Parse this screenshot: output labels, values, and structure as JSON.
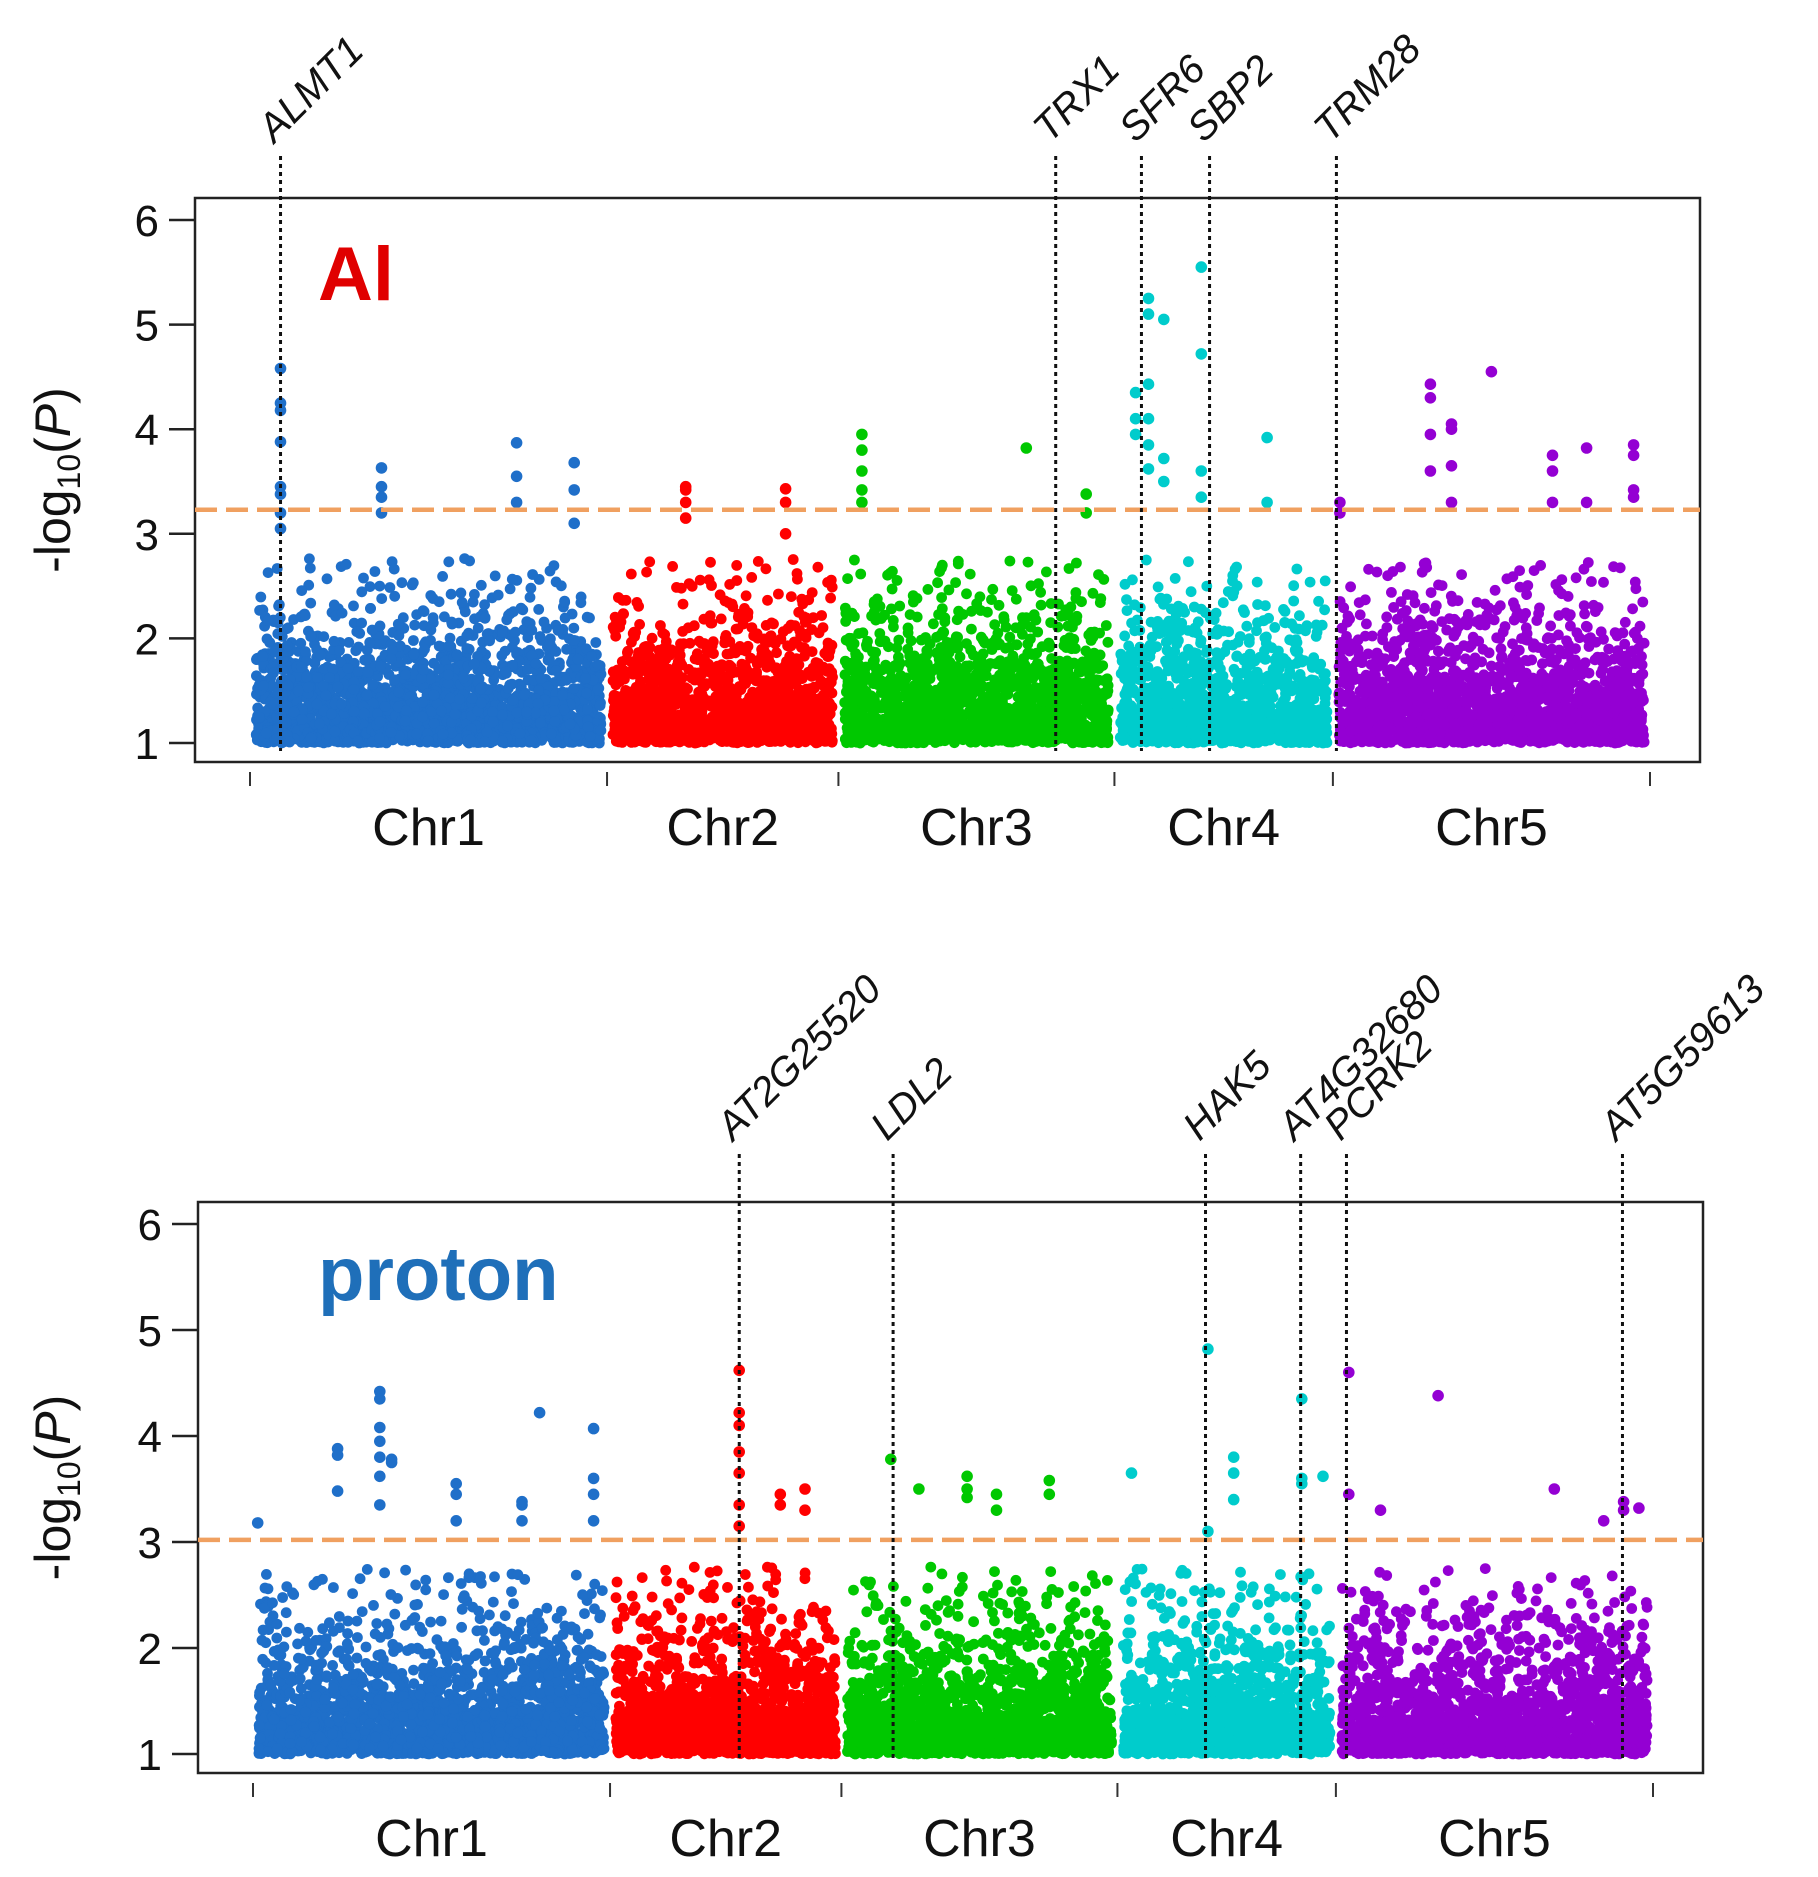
{
  "chart_data": [
    {
      "type": "scatter",
      "subtype": "manhattan",
      "title": "Al",
      "title_color": "#e00000",
      "ylabel": "-log10(P)",
      "ylabel_parts": {
        "prefix": "-log",
        "sub": "10",
        "suffix": "(",
        "italic": "P",
        "close": ")"
      },
      "ylim": [
        1,
        6.2
      ],
      "yticks": [
        "1",
        "2",
        "3",
        "4",
        "5",
        "6"
      ],
      "threshold": 3.23,
      "threshold_color": "#f0a060",
      "chromosomes": [
        {
          "name": "Chr1",
          "color": "#1f6fc9",
          "start": 0,
          "end": 30.4
        },
        {
          "name": "Chr2",
          "color": "#ff0000",
          "start": 30.4,
          "end": 50.1
        },
        {
          "name": "Chr3",
          "color": "#00c800",
          "start": 50.1,
          "end": 73.6
        },
        {
          "name": "Chr4",
          "color": "#00cccc",
          "start": 73.6,
          "end": 92.2
        },
        {
          "name": "Chr5",
          "color": "#9400d3",
          "start": 92.2,
          "end": 119.2
        }
      ],
      "peaks": [
        {
          "x": 2.6,
          "values": [
            4.58,
            4.25,
            4.18,
            3.88,
            3.45,
            3.38,
            3.2,
            3.05
          ]
        },
        {
          "x": 11.2,
          "values": [
            3.63,
            3.45,
            3.35,
            3.2
          ]
        },
        {
          "x": 22.7,
          "values": [
            3.87,
            3.55,
            3.3
          ]
        },
        {
          "x": 27.6,
          "values": [
            3.68,
            3.42,
            3.1
          ]
        },
        {
          "x": 37.1,
          "values": [
            3.45,
            3.42,
            3.3,
            3.15
          ]
        },
        {
          "x": 45.6,
          "values": [
            3.43,
            3.3,
            3.0
          ]
        },
        {
          "x": 52.1,
          "values": [
            3.95,
            3.8,
            3.6,
            3.42,
            3.3
          ]
        },
        {
          "x": 66.1,
          "values": [
            3.82
          ]
        },
        {
          "x": 71.2,
          "values": [
            3.38,
            3.2
          ]
        },
        {
          "x": 75.4,
          "values": [
            4.35,
            4.1,
            3.95
          ]
        },
        {
          "x": 76.5,
          "values": [
            5.25,
            5.1,
            4.43,
            4.1,
            3.85,
            3.62
          ]
        },
        {
          "x": 77.8,
          "values": [
            5.05,
            3.72,
            3.5
          ]
        },
        {
          "x": 81.0,
          "values": [
            5.55,
            4.72,
            3.6,
            3.35
          ]
        },
        {
          "x": 86.6,
          "values": [
            3.92,
            3.3
          ]
        },
        {
          "x": 92.8,
          "values": [
            3.3,
            3.2
          ]
        },
        {
          "x": 100.5,
          "values": [
            4.43,
            4.3,
            3.95,
            3.6
          ]
        },
        {
          "x": 102.3,
          "values": [
            4.05,
            4.0,
            3.65,
            3.3
          ]
        },
        {
          "x": 105.7,
          "values": [
            4.55
          ]
        },
        {
          "x": 110.9,
          "values": [
            3.75,
            3.6,
            3.3
          ]
        },
        {
          "x": 113.8,
          "values": [
            3.82,
            3.3
          ]
        },
        {
          "x": 117.8,
          "values": [
            3.85,
            3.75,
            3.42,
            3.35
          ]
        }
      ],
      "genes": [
        {
          "name": "ALMT1",
          "x": 2.6
        },
        {
          "name": "TRX1",
          "x": 68.6
        },
        {
          "name": "SFR6",
          "x": 75.9
        },
        {
          "name": "SBP2",
          "x": 81.7
        },
        {
          "name": "TRM28",
          "x": 92.5
        }
      ]
    },
    {
      "type": "scatter",
      "subtype": "manhattan",
      "title": "proton",
      "title_color": "#1f6fb9",
      "ylabel": "-log10(P)",
      "ylabel_parts": {
        "prefix": "-log",
        "sub": "10",
        "suffix": "(",
        "italic": "P",
        "close": ")"
      },
      "ylim": [
        1,
        6.2
      ],
      "yticks": [
        "1",
        "2",
        "3",
        "4",
        "5",
        "6"
      ],
      "threshold": 3.02,
      "threshold_color": "#f0a060",
      "chromosomes": [
        {
          "name": "Chr1",
          "color": "#1f6fc9",
          "start": 0,
          "end": 30.4
        },
        {
          "name": "Chr2",
          "color": "#ff0000",
          "start": 30.4,
          "end": 50.1
        },
        {
          "name": "Chr3",
          "color": "#00c800",
          "start": 50.1,
          "end": 73.6
        },
        {
          "name": "Chr4",
          "color": "#00cccc",
          "start": 73.6,
          "end": 92.2
        },
        {
          "name": "Chr5",
          "color": "#9400d3",
          "start": 92.2,
          "end": 119.2
        }
      ],
      "peaks": [
        {
          "x": 0.4,
          "values": [
            3.18
          ]
        },
        {
          "x": 7.2,
          "values": [
            3.88,
            3.82,
            3.48
          ]
        },
        {
          "x": 10.8,
          "values": [
            4.42,
            4.35,
            4.08,
            3.95,
            3.8,
            3.62,
            3.35
          ]
        },
        {
          "x": 11.8,
          "values": [
            3.78,
            3.75
          ]
        },
        {
          "x": 17.3,
          "values": [
            3.55,
            3.45,
            3.2
          ]
        },
        {
          "x": 22.9,
          "values": [
            3.38,
            3.35,
            3.2
          ]
        },
        {
          "x": 24.4,
          "values": [
            4.22
          ]
        },
        {
          "x": 29.0,
          "values": [
            4.07,
            3.6,
            3.45,
            3.2
          ]
        },
        {
          "x": 41.4,
          "values": [
            4.62,
            4.22,
            4.1,
            3.85,
            3.65,
            3.35,
            3.15
          ]
        },
        {
          "x": 44.9,
          "values": [
            3.45,
            3.35
          ]
        },
        {
          "x": 47.0,
          "values": [
            3.5,
            3.3
          ]
        },
        {
          "x": 54.3,
          "values": [
            3.78
          ]
        },
        {
          "x": 56.7,
          "values": [
            3.5
          ]
        },
        {
          "x": 60.8,
          "values": [
            3.62,
            3.5,
            3.42
          ]
        },
        {
          "x": 63.3,
          "values": [
            3.45,
            3.3
          ]
        },
        {
          "x": 67.8,
          "values": [
            3.58,
            3.45
          ]
        },
        {
          "x": 74.8,
          "values": [
            3.65
          ]
        },
        {
          "x": 81.3,
          "values": [
            4.82,
            3.1
          ]
        },
        {
          "x": 83.5,
          "values": [
            3.8,
            3.65,
            3.4
          ]
        },
        {
          "x": 89.3,
          "values": [
            4.35,
            3.6,
            3.55
          ]
        },
        {
          "x": 91.1,
          "values": [
            3.62
          ]
        },
        {
          "x": 93.3,
          "values": [
            4.6,
            3.45
          ]
        },
        {
          "x": 96.0,
          "values": [
            3.3
          ]
        },
        {
          "x": 100.9,
          "values": [
            4.38
          ]
        },
        {
          "x": 110.8,
          "values": [
            3.5
          ]
        },
        {
          "x": 115.0,
          "values": [
            3.2
          ]
        },
        {
          "x": 116.7,
          "values": [
            3.38,
            3.3
          ]
        },
        {
          "x": 118.0,
          "values": [
            3.32
          ]
        }
      ],
      "genes": [
        {
          "name": "AT2G25520",
          "x": 41.4
        },
        {
          "name": "LDL2",
          "x": 54.5
        },
        {
          "name": "HAK5",
          "x": 81.1
        },
        {
          "name": "AT4G32680",
          "x": 89.2
        },
        {
          "name": "PCRK2",
          "x": 93.1
        },
        {
          "name": "AT5G59613",
          "x": 116.6
        }
      ]
    }
  ]
}
